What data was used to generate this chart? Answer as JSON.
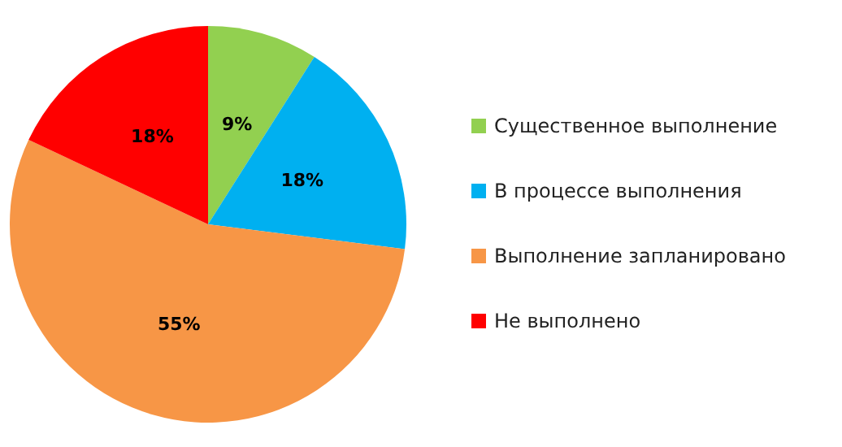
{
  "chart_data": {
    "type": "pie",
    "categories": [
      "Существенное выполнение",
      "В процессе выполнения",
      "Выполнение запланировано",
      "Не выполнено"
    ],
    "values": [
      9,
      18,
      55,
      18
    ],
    "colors": [
      "#92d050",
      "#00b0f0",
      "#f79646",
      "#ff0000"
    ],
    "value_labels": [
      "9%",
      "18%",
      "55%",
      "18%"
    ],
    "legend": "right"
  }
}
